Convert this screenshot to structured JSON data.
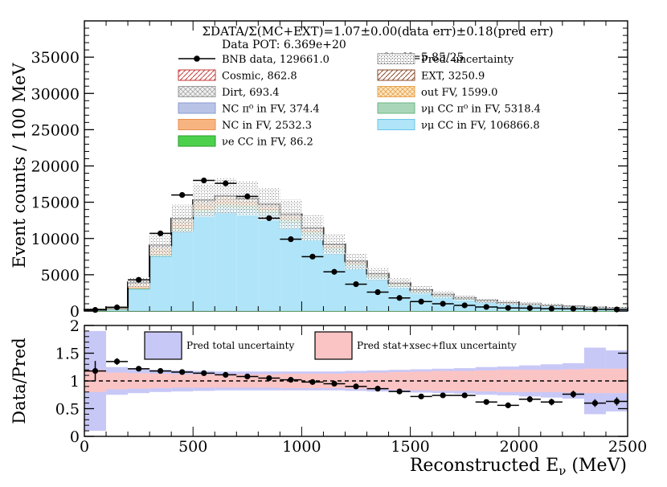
{
  "chart_data": [
    {
      "type": "bar",
      "panel": "main",
      "xlabel": "Reconstructed E",
      "xlabel_sub": "ν",
      "xlabel_unit": "(MeV)",
      "ylabel": "Event counts / 100 MeV",
      "xlim": [
        0,
        2500
      ],
      "ylim": [
        0,
        40000
      ],
      "y_ticks": [
        0,
        5000,
        10000,
        15000,
        20000,
        25000,
        30000,
        35000
      ],
      "y_tick_labels": [
        "0",
        "5000",
        "10000",
        "15000",
        "20000",
        "25000",
        "30000",
        "35000"
      ],
      "bin_edges": [
        0,
        100,
        200,
        300,
        400,
        500,
        600,
        700,
        800,
        900,
        1000,
        1100,
        1200,
        1300,
        1400,
        1500,
        1600,
        1700,
        1800,
        1900,
        2000,
        2100,
        2200,
        2300,
        2400,
        2500
      ],
      "header_lines": [
        "ΣDATA/Σ(MC+EXT)=1.07±0.00(data err)±0.18(pred err)",
        "Data POT: 6.369e+20",
        "χ²/ndf=5.85/25"
      ],
      "legend": [
        {
          "key": "data",
          "label": "BNB data, 129661.0"
        },
        {
          "key": "pred_unc",
          "label": "Pred. uncertainty"
        },
        {
          "key": "cosmic",
          "label": "Cosmic, 862.8"
        },
        {
          "key": "ext",
          "label": "EXT, 3250.9"
        },
        {
          "key": "dirt",
          "label": "Dirt, 693.4"
        },
        {
          "key": "outfv",
          "label": "out FV, 1599.0"
        },
        {
          "key": "ncpi0",
          "label": "NC π⁰ in FV,  374.4"
        },
        {
          "key": "numupi0",
          "label": "νμ CC π⁰ in FV, 5318.4"
        },
        {
          "key": "nc",
          "label": "NC in FV, 2532.3"
        },
        {
          "key": "numucc",
          "label": "νμ CC in FV, 106866.8"
        },
        {
          "key": "nuecc",
          "label": "νe CC in FV, 86.2"
        }
      ],
      "series": [
        {
          "name": "νe CC in FV",
          "key": "nuecc",
          "color": "#4dd14d",
          "values": [
            2,
            5,
            8,
            10,
            10,
            10,
            9,
            8,
            7,
            6,
            5,
            4,
            3,
            3,
            2,
            2,
            2,
            1,
            1,
            1,
            1,
            1,
            1,
            1,
            1
          ]
        },
        {
          "name": "νμ CC in FV",
          "key": "numucc",
          "color": "#b0e4f8",
          "values": [
            100,
            250,
            3000,
            7500,
            11000,
            13500,
            14200,
            14000,
            13400,
            12200,
            10500,
            8400,
            6200,
            4600,
            3400,
            2550,
            1980,
            1560,
            1240,
            990,
            820,
            680,
            560,
            460,
            390
          ]
        },
        {
          "name": "νμ CC π⁰ in FV",
          "key": "numupi0",
          "color": "#a9d6b9",
          "values": [
            5,
            10,
            100,
            240,
            380,
            480,
            520,
            520,
            490,
            440,
            380,
            320,
            260,
            210,
            170,
            140,
            110,
            90,
            70,
            60,
            50,
            40,
            30,
            25,
            20
          ]
        },
        {
          "name": "NC in FV",
          "key": "nc",
          "color": "#f7b481",
          "values": [
            20,
            60,
            320,
            520,
            600,
            580,
            520,
            440,
            360,
            300,
            240,
            200,
            160,
            130,
            110,
            90,
            70,
            60,
            50,
            40,
            30,
            25,
            20,
            15,
            10
          ]
        },
        {
          "name": "NC π⁰ in FV",
          "key": "ncpi0",
          "color": "#b8c3e6",
          "values": [
            2,
            5,
            30,
            55,
            60,
            55,
            45,
            35,
            28,
            20,
            15,
            12,
            9,
            7,
            5,
            4,
            3,
            2,
            2,
            1,
            1,
            1,
            1,
            0,
            0
          ]
        },
        {
          "name": "out FV",
          "key": "outfv",
          "color": "#f4cf8f",
          "values": [
            10,
            30,
            150,
            250,
            230,
            200,
            170,
            140,
            110,
            90,
            70,
            55,
            45,
            35,
            28,
            22,
            18,
            15,
            12,
            10,
            8,
            6,
            5,
            4,
            3
          ]
        },
        {
          "name": "Dirt",
          "key": "dirt",
          "color": "#e4e4e4",
          "values": [
            30,
            60,
            100,
            90,
            70,
            55,
            45,
            37,
            30,
            25,
            20,
            17,
            14,
            12,
            10,
            8,
            7,
            6,
            5,
            4,
            3,
            3,
            2,
            2,
            1
          ]
        },
        {
          "name": "EXT",
          "key": "ext",
          "color": "#ffffff",
          "values": [
            40,
            80,
            200,
            300,
            320,
            310,
            290,
            260,
            230,
            200,
            175,
            150,
            130,
            110,
            95,
            80,
            68,
            57,
            48,
            40,
            34,
            29,
            25,
            21,
            19
          ]
        },
        {
          "name": "Cosmic",
          "key": "cosmic",
          "color": "#ffffff",
          "values": [
            10,
            20,
            50,
            80,
            90,
            85,
            80,
            72,
            64,
            56,
            48,
            40,
            34,
            28,
            23,
            19,
            16,
            13,
            11,
            9,
            7,
            6,
            5,
            4,
            3
          ]
        }
      ],
      "pred_uncertainty_rel": [
        0.3,
        0.25,
        0.18,
        0.16,
        0.15,
        0.15,
        0.15,
        0.15,
        0.15,
        0.15,
        0.15,
        0.15,
        0.16,
        0.17,
        0.18,
        0.19,
        0.2,
        0.21,
        0.22,
        0.23,
        0.24,
        0.25,
        0.26,
        0.27,
        0.28
      ],
      "data": {
        "x": [
          50,
          150,
          250,
          350,
          450,
          550,
          650,
          750,
          850,
          950,
          1050,
          1150,
          1250,
          1350,
          1450,
          1550,
          1650,
          1750,
          1850,
          1950,
          2050,
          2150,
          2250,
          2350,
          2450
        ],
        "y": [
          150,
          500,
          4300,
          10700,
          16000,
          18000,
          17600,
          15800,
          12800,
          9900,
          7500,
          5400,
          3700,
          2600,
          1800,
          1300,
          1000,
          780,
          560,
          420,
          400,
          320,
          310,
          240,
          210
        ]
      }
    },
    {
      "type": "scatter",
      "panel": "ratio",
      "ylabel": "Data/Pred",
      "xlim": [
        0,
        2500
      ],
      "ylim": [
        0,
        2
      ],
      "x_ticks": [
        0,
        500,
        1000,
        1500,
        2000,
        2500
      ],
      "x_tick_labels": [
        "0",
        "500",
        "1000",
        "1500",
        "2000",
        "2500"
      ],
      "y_ticks": [
        0,
        0.5,
        1,
        1.5,
        2
      ],
      "y_tick_labels": [
        "0",
        "0.5",
        "1",
        "1.5",
        "2"
      ],
      "reference_line": 1,
      "legend": [
        {
          "key": "total",
          "label": "Pred total uncertainty",
          "color": "#c8c8f7"
        },
        {
          "key": "stat",
          "label": "Pred stat+xsec+flux uncertainty",
          "color": "#fbc4c4"
        }
      ],
      "total_band": [
        0.9,
        0.25,
        0.22,
        0.2,
        0.19,
        0.18,
        0.17,
        0.17,
        0.17,
        0.17,
        0.17,
        0.17,
        0.18,
        0.19,
        0.2,
        0.21,
        0.22,
        0.23,
        0.25,
        0.26,
        0.28,
        0.3,
        0.32,
        0.6,
        0.55
      ],
      "stat_band": [
        0.2,
        0.15,
        0.14,
        0.13,
        0.12,
        0.12,
        0.12,
        0.12,
        0.12,
        0.13,
        0.13,
        0.13,
        0.14,
        0.15,
        0.16,
        0.17,
        0.18,
        0.18,
        0.19,
        0.2,
        0.2,
        0.2,
        0.21,
        0.22,
        0.22
      ],
      "ratio": {
        "x": [
          50,
          150,
          250,
          350,
          450,
          550,
          650,
          750,
          850,
          950,
          1050,
          1150,
          1250,
          1350,
          1450,
          1550,
          1650,
          1750,
          1850,
          1950,
          2050,
          2150,
          2250,
          2350,
          2450
        ],
        "y": [
          1.18,
          1.35,
          1.22,
          1.18,
          1.16,
          1.14,
          1.11,
          1.08,
          1.05,
          1.02,
          0.98,
          0.95,
          0.9,
          0.86,
          0.81,
          0.72,
          0.74,
          0.74,
          0.62,
          0.56,
          0.67,
          0.62,
          0.76,
          0.6,
          0.63
        ],
        "err": [
          0.18,
          0.06,
          0.03,
          0.02,
          0.015,
          0.012,
          0.012,
          0.012,
          0.014,
          0.015,
          0.016,
          0.018,
          0.02,
          0.023,
          0.027,
          0.032,
          0.036,
          0.04,
          0.045,
          0.05,
          0.055,
          0.06,
          0.065,
          0.07,
          0.075
        ]
      }
    }
  ]
}
